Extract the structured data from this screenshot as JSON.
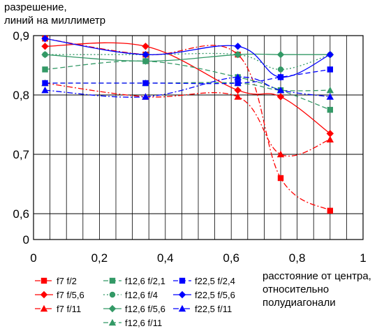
{
  "chart_data": {
    "type": "line",
    "ylabel_lines": [
      "разрешение,",
      "линий на миллиметр"
    ],
    "xlabel_lines": [
      "расстояние от центра,",
      "относительно",
      "полудиагонали"
    ],
    "xlim": [
      0,
      1
    ],
    "x_ticks": [
      "0",
      "0,2",
      "0,4",
      "0,6",
      "0,8",
      "1"
    ],
    "y_ticks": [
      {
        "value": 0,
        "label": "0"
      },
      {
        "value": 0.6,
        "label": "0,6"
      },
      {
        "value": 0.7,
        "label": "0,7"
      },
      {
        "value": 0.8,
        "label": "0,8"
      },
      {
        "value": 0.9,
        "label": "0,9"
      }
    ],
    "y_axis_break": "between 0 and 0.6",
    "x_minor_gridline_step": 0.05,
    "grid": true,
    "legend_position": "bottom",
    "series": [
      {
        "name": "f7 f/2",
        "color": "#ff0000",
        "marker": "square",
        "line": "dash-dot",
        "points": [
          [
            0.035,
            0.895
          ],
          [
            0.34,
            0.868
          ],
          [
            0.62,
            0.868
          ],
          [
            0.75,
            0.66
          ],
          [
            0.9,
            0.605
          ]
        ]
      },
      {
        "name": "f7 f/5,6",
        "color": "#ff0000",
        "marker": "diamond",
        "line": "solid",
        "points": [
          [
            0.035,
            0.882
          ],
          [
            0.34,
            0.882
          ],
          [
            0.62,
            0.808
          ],
          [
            0.75,
            0.797
          ],
          [
            0.9,
            0.735
          ]
        ]
      },
      {
        "name": "f7 f/11",
        "color": "#ff0000",
        "marker": "triangle",
        "line": "dash-dot",
        "points": [
          [
            0.035,
            0.82
          ],
          [
            0.34,
            0.797
          ],
          [
            0.62,
            0.797
          ],
          [
            0.75,
            0.7
          ],
          [
            0.9,
            0.725
          ]
        ]
      },
      {
        "name": "f12,6 f/2,1",
        "color": "#339966",
        "marker": "square",
        "line": "dashed",
        "points": [
          [
            0.035,
            0.843
          ],
          [
            0.34,
            0.857
          ],
          [
            0.62,
            0.83
          ],
          [
            0.75,
            0.808
          ],
          [
            0.9,
            0.775
          ]
        ]
      },
      {
        "name": "f12,6 f/4",
        "color": "#339966",
        "marker": "circle",
        "line": "dotted",
        "points": [
          [
            0.035,
            0.868
          ],
          [
            0.34,
            0.868
          ],
          [
            0.62,
            0.868
          ],
          [
            0.75,
            0.843
          ],
          [
            0.9,
            0.868
          ]
        ]
      },
      {
        "name": "f12,6 f/5,6",
        "color": "#339966",
        "marker": "diamond",
        "line": "solid",
        "points": [
          [
            0.035,
            0.868
          ],
          [
            0.34,
            0.857
          ],
          [
            0.62,
            0.868
          ],
          [
            0.75,
            0.868
          ],
          [
            0.9,
            0.868
          ]
        ]
      },
      {
        "name": "f12,6 f/11",
        "color": "#339966",
        "marker": "triangle",
        "line": "dashed",
        "points": [
          [
            0.035,
            0.82
          ],
          [
            0.34,
            0.82
          ],
          [
            0.62,
            0.82
          ],
          [
            0.75,
            0.808
          ],
          [
            0.9,
            0.808
          ]
        ]
      },
      {
        "name": "f22,5 f/2,4",
        "color": "#0000ff",
        "marker": "square",
        "line": "dashed",
        "points": [
          [
            0.035,
            0.82
          ],
          [
            0.34,
            0.82
          ],
          [
            0.62,
            0.82
          ],
          [
            0.75,
            0.83
          ],
          [
            0.9,
            0.843
          ]
        ]
      },
      {
        "name": "f22,5 f/5,6",
        "color": "#0000ff",
        "marker": "diamond",
        "line": "solid",
        "points": [
          [
            0.035,
            0.895
          ],
          [
            0.34,
            0.868
          ],
          [
            0.62,
            0.882
          ],
          [
            0.75,
            0.83
          ],
          [
            0.9,
            0.868
          ]
        ]
      },
      {
        "name": "f22,5 f/11",
        "color": "#0000ff",
        "marker": "triangle",
        "line": "dash-dot",
        "points": [
          [
            0.035,
            0.808
          ],
          [
            0.34,
            0.797
          ],
          [
            0.62,
            0.83
          ],
          [
            0.75,
            0.808
          ],
          [
            0.9,
            0.797
          ]
        ]
      }
    ]
  }
}
